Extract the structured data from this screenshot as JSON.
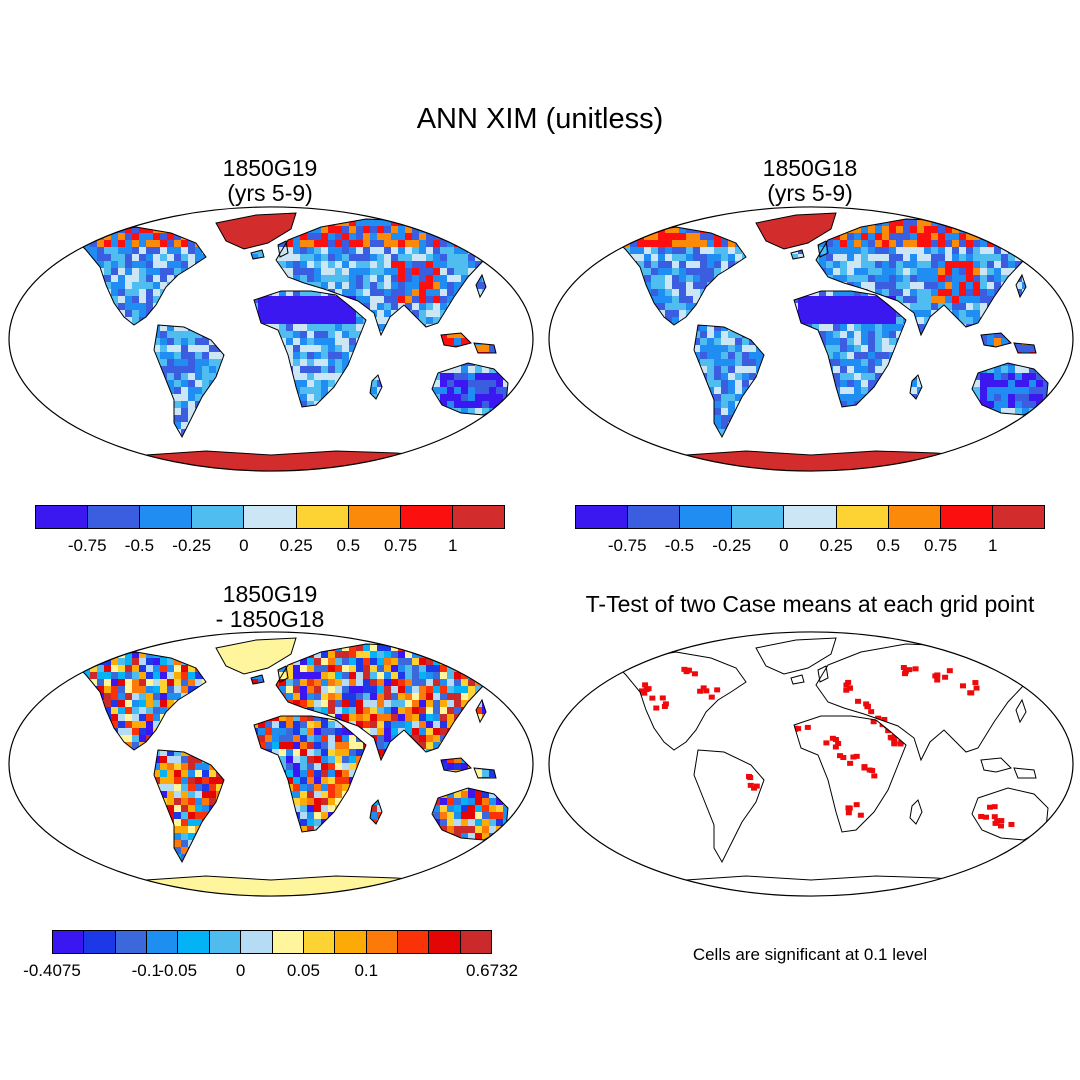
{
  "main_title": "ANN XIM (unitless)",
  "panels": {
    "top_left": {
      "title_line1": "1850G19",
      "title_line2": "(yrs 5-9)"
    },
    "top_right": {
      "title_line1": "1850G18",
      "title_line2": "(yrs 5-9)"
    },
    "bottom_left": {
      "title_line1": "1850G19",
      "title_line2": "- 1850G18"
    },
    "bottom_right": {
      "title": "T-Test of two Case means at each grid point",
      "note": "Cells are significant at 0.1 level"
    }
  },
  "colorbar_main": {
    "colors": [
      "#3b18f0",
      "#3b5ee0",
      "#1f8df2",
      "#50bdf0",
      "#cce6f5",
      "#fdd233",
      "#fb8a0a",
      "#fb0f0f",
      "#d22c2c"
    ],
    "labels": [
      "-0.75",
      "-0.5",
      "-0.25",
      "0",
      "0.25",
      "0.5",
      "0.75",
      "1"
    ]
  },
  "colorbar_diff": {
    "colors": [
      "#3a17f0",
      "#1d38e6",
      "#3b68da",
      "#1e8ef0",
      "#04b2f6",
      "#50bcee",
      "#b6dcf5",
      "#fff59c",
      "#fdd233",
      "#fcaa06",
      "#fb7a0a",
      "#f93307",
      "#e40505",
      "#cc2a2a"
    ],
    "labels": [
      "-0.4075",
      "-0.1",
      "-0.05",
      "0",
      "0.05",
      "0.1",
      "0.6732"
    ],
    "label_boundaries": [
      0,
      3,
      4,
      6,
      8,
      10,
      14
    ]
  },
  "colors": {
    "land_mid": "#4a8fe6",
    "antarctica_main": "#d22c2c",
    "antarctica_diff": "#fff59c",
    "signif": "#ee0a0a"
  }
}
